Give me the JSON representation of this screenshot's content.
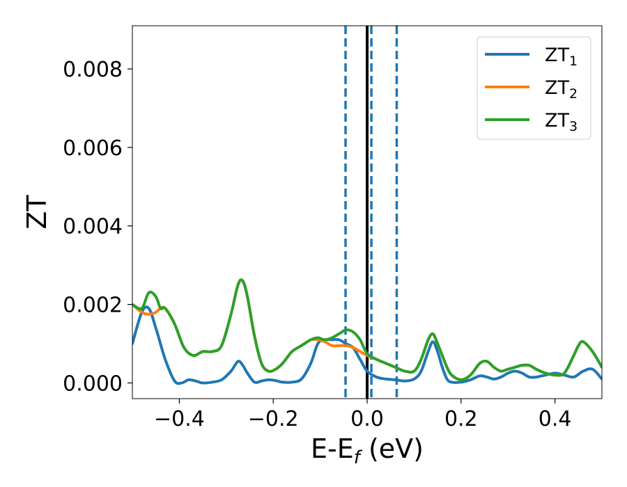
{
  "chart_data": {
    "type": "line",
    "xlabel": "E-E_f (eV)",
    "ylabel": "ZT",
    "xlim": [
      -0.5,
      0.5
    ],
    "ylim": [
      -0.0004,
      0.0091
    ],
    "xticks": [
      -0.4,
      -0.2,
      0.0,
      0.2,
      0.4
    ],
    "xtick_labels": [
      "−0.4",
      "−0.2",
      "0.0",
      "0.2",
      "0.4"
    ],
    "yticks": [
      0.0,
      0.002,
      0.004,
      0.006,
      0.008
    ],
    "ytick_labels": [
      "0.000",
      "0.002",
      "0.004",
      "0.006",
      "0.008"
    ],
    "legend_position": "top-right",
    "grid": false,
    "vertical_lines": [
      {
        "x": 0.0,
        "style": "solid",
        "color": "#000000"
      },
      {
        "x": -0.046,
        "style": "dashed",
        "color": "#1f77b4"
      },
      {
        "x": 0.009,
        "style": "dashed",
        "color": "#1f77b4"
      },
      {
        "x": 0.063,
        "style": "dashed",
        "color": "#1f77b4"
      }
    ],
    "series": [
      {
        "name": "ZT_1",
        "color": "#1f77b4",
        "x": [
          -0.5,
          -0.48,
          -0.465,
          -0.45,
          -0.43,
          -0.41,
          -0.395,
          -0.38,
          -0.365,
          -0.35,
          -0.33,
          -0.31,
          -0.29,
          -0.275,
          -0.265,
          -0.255,
          -0.24,
          -0.225,
          -0.21,
          -0.195,
          -0.18,
          -0.16,
          -0.14,
          -0.12,
          -0.105,
          -0.09,
          -0.075,
          -0.06,
          -0.045,
          -0.03,
          -0.015,
          0.0,
          0.02,
          0.04,
          0.06,
          0.08,
          0.1,
          0.115,
          0.13,
          0.14,
          0.15,
          0.16,
          0.17,
          0.18,
          0.2,
          0.22,
          0.24,
          0.255,
          0.27,
          0.285,
          0.3,
          0.315,
          0.33,
          0.345,
          0.36,
          0.38,
          0.4,
          0.42,
          0.44,
          0.46,
          0.48,
          0.5
        ],
        "y": [
          0.001,
          0.0018,
          0.0019,
          0.0014,
          0.0006,
          5e-05,
          0.0,
          8e-05,
          5e-05,
          0.0,
          2e-05,
          8e-05,
          0.0003,
          0.00055,
          0.00045,
          0.00025,
          2e-05,
          5e-05,
          8e-05,
          6e-05,
          2e-05,
          2e-05,
          0.0001,
          0.0005,
          0.001,
          0.0011,
          0.0011,
          0.0011,
          0.001,
          0.0009,
          0.0006,
          0.0003,
          0.00015,
          0.0001,
          8e-05,
          5e-05,
          0.0001,
          0.0003,
          0.0008,
          0.00105,
          0.0008,
          0.0004,
          0.0001,
          2e-05,
          2e-05,
          8e-05,
          0.00018,
          0.00015,
          0.0001,
          0.00015,
          0.00025,
          0.0003,
          0.00025,
          0.00015,
          0.00015,
          0.0002,
          0.00025,
          0.0002,
          0.00015,
          0.0003,
          0.00035,
          0.0001
        ]
      },
      {
        "name": "ZT_2",
        "color": "#ff7f0e",
        "x": [
          -0.5,
          -0.48,
          -0.465,
          -0.45,
          -0.44,
          -0.43,
          -0.41,
          -0.39,
          -0.37,
          -0.35,
          -0.33,
          -0.31,
          -0.29,
          -0.275,
          -0.265,
          -0.255,
          -0.24,
          -0.225,
          -0.21,
          -0.195,
          -0.18,
          -0.16,
          -0.14,
          -0.12,
          -0.105,
          -0.09,
          -0.075,
          -0.06,
          -0.045,
          -0.03,
          -0.015,
          0.0,
          0.02,
          0.04,
          0.06,
          0.08,
          0.1,
          0.115,
          0.13,
          0.14,
          0.15,
          0.16,
          0.17,
          0.18,
          0.2,
          0.22,
          0.24,
          0.255,
          0.27,
          0.285,
          0.3,
          0.315,
          0.33,
          0.345,
          0.36,
          0.38,
          0.4,
          0.42,
          0.44,
          0.45,
          0.46,
          0.48,
          0.5
        ],
        "y": [
          0.002,
          0.0018,
          0.00175,
          0.0018,
          0.0019,
          0.0019,
          0.0015,
          0.0009,
          0.0007,
          0.0008,
          0.0008,
          0.00095,
          0.00175,
          0.0025,
          0.0026,
          0.0022,
          0.0012,
          0.0005,
          0.0003,
          0.00035,
          0.0005,
          0.0008,
          0.00095,
          0.0011,
          0.0011,
          0.00105,
          0.00095,
          0.00095,
          0.00095,
          0.0009,
          0.0008,
          0.0007,
          0.0006,
          0.0005,
          0.0004,
          0.0003,
          0.0003,
          0.0006,
          0.0011,
          0.00125,
          0.001,
          0.0007,
          0.0004,
          0.0002,
          8e-05,
          0.0002,
          0.0005,
          0.00055,
          0.0004,
          0.0003,
          0.00035,
          0.0004,
          0.00045,
          0.00045,
          0.00035,
          0.00025,
          0.0002,
          0.00025,
          0.0007,
          0.00095,
          0.00105,
          0.0008,
          0.0004
        ]
      },
      {
        "name": "ZT_3",
        "color": "#2ca02c",
        "x": [
          -0.5,
          -0.48,
          -0.465,
          -0.45,
          -0.44,
          -0.43,
          -0.41,
          -0.39,
          -0.37,
          -0.35,
          -0.33,
          -0.31,
          -0.29,
          -0.275,
          -0.265,
          -0.255,
          -0.24,
          -0.225,
          -0.21,
          -0.195,
          -0.18,
          -0.16,
          -0.14,
          -0.12,
          -0.105,
          -0.09,
          -0.075,
          -0.06,
          -0.045,
          -0.03,
          -0.015,
          0.0,
          0.02,
          0.04,
          0.06,
          0.08,
          0.1,
          0.115,
          0.13,
          0.14,
          0.15,
          0.16,
          0.17,
          0.18,
          0.2,
          0.22,
          0.24,
          0.255,
          0.27,
          0.285,
          0.3,
          0.315,
          0.33,
          0.345,
          0.36,
          0.38,
          0.4,
          0.42,
          0.44,
          0.45,
          0.46,
          0.48,
          0.5
        ],
        "y": [
          0.002,
          0.0019,
          0.0023,
          0.0022,
          0.0019,
          0.0019,
          0.0015,
          0.0009,
          0.0007,
          0.0008,
          0.0008,
          0.00095,
          0.00175,
          0.0025,
          0.0026,
          0.0022,
          0.0012,
          0.0005,
          0.0003,
          0.00035,
          0.0005,
          0.0008,
          0.00095,
          0.0011,
          0.00115,
          0.0011,
          0.00115,
          0.00125,
          0.00135,
          0.0013,
          0.0011,
          0.00075,
          0.0006,
          0.0005,
          0.0004,
          0.0003,
          0.0003,
          0.0006,
          0.0011,
          0.00125,
          0.001,
          0.0007,
          0.0004,
          0.0002,
          8e-05,
          0.0002,
          0.0005,
          0.00055,
          0.0004,
          0.0003,
          0.00035,
          0.0004,
          0.00045,
          0.00045,
          0.00035,
          0.00025,
          0.0002,
          0.00025,
          0.0007,
          0.00095,
          0.00105,
          0.0008,
          0.0004
        ]
      }
    ],
    "legend": [
      {
        "label": "ZT",
        "subscript": "1",
        "color": "#1f77b4"
      },
      {
        "label": "ZT",
        "subscript": "2",
        "color": "#ff7f0e"
      },
      {
        "label": "ZT",
        "subscript": "3",
        "color": "#2ca02c"
      }
    ]
  }
}
